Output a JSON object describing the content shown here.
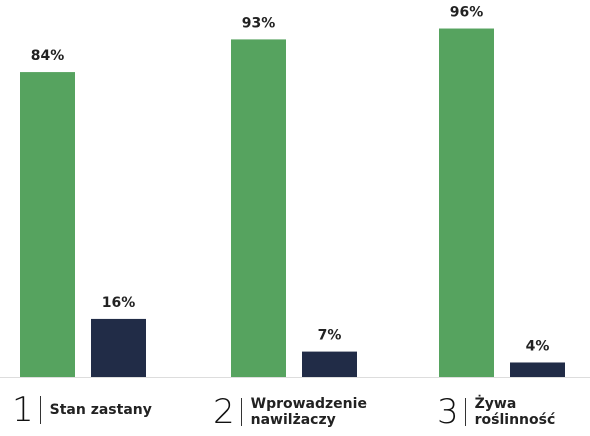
{
  "chart_data": {
    "type": "bar",
    "categories": [
      "Stan zastany",
      "Wprowadzenie nawilżaczy",
      "Żywa roślinność"
    ],
    "category_numbers": [
      "1",
      "2",
      "3"
    ],
    "series": [
      {
        "color": "#56a35f",
        "values": [
          84,
          93,
          96
        ],
        "value_labels": [
          "84%",
          "93%",
          "96%"
        ]
      },
      {
        "color": "#212c47",
        "values": [
          16,
          7,
          4
        ],
        "value_labels": [
          "16%",
          "7%",
          "4%"
        ]
      }
    ]
  }
}
